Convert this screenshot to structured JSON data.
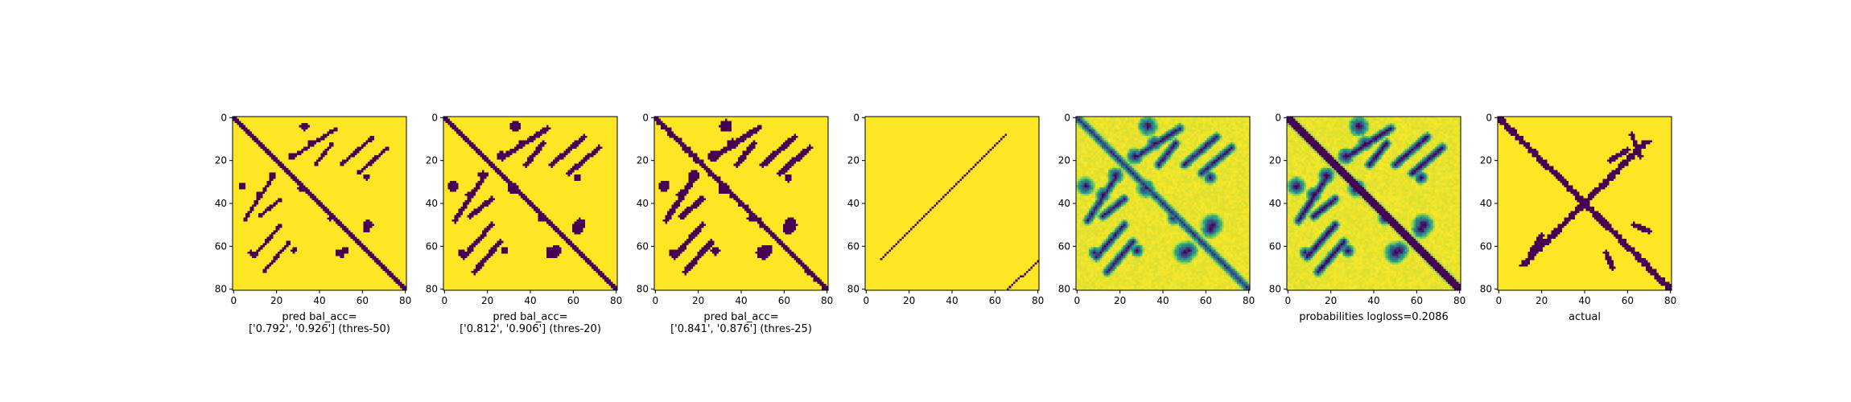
{
  "figure": {
    "panels": [
      {
        "label_lines": [
          "pred bal_acc=",
          "['0.792', '0.926'] (thres-50)"
        ]
      },
      {
        "label_lines": [
          "pred bal_acc=",
          "['0.812', '0.906'] (thres-20)"
        ]
      },
      {
        "label_lines": [
          "pred bal_acc=",
          "['0.841', '0.876'] (thres-25)"
        ]
      },
      {
        "label_lines": []
      },
      {
        "label_lines": []
      },
      {
        "label_lines": [
          "probabilities logloss=0.2086"
        ]
      },
      {
        "label_lines": [
          "actual"
        ]
      }
    ]
  },
  "chart_data": [
    {
      "type": "heatmap",
      "variant": "binary",
      "n": 81,
      "xlim": [
        0,
        80
      ],
      "ylim": [
        80,
        0
      ],
      "x_ticks": [
        0,
        20,
        40,
        60,
        80
      ],
      "y_ticks": [
        0,
        20,
        40,
        60,
        80
      ],
      "xlabel": "pred bal_acc=\n['0.792', '0.926'] (thres-50)",
      "colors": {
        "low": "#440154",
        "high": "#fde725"
      }
    },
    {
      "type": "heatmap",
      "variant": "binary",
      "n": 81,
      "xlim": [
        0,
        80
      ],
      "ylim": [
        80,
        0
      ],
      "x_ticks": [
        0,
        20,
        40,
        60,
        80
      ],
      "y_ticks": [
        0,
        20,
        40,
        60,
        80
      ],
      "xlabel": "pred bal_acc=\n['0.812', '0.906'] (thres-20)",
      "colors": {
        "low": "#440154",
        "high": "#fde725"
      }
    },
    {
      "type": "heatmap",
      "variant": "binary",
      "n": 81,
      "xlim": [
        0,
        80
      ],
      "ylim": [
        80,
        0
      ],
      "x_ticks": [
        0,
        20,
        40,
        60,
        80
      ],
      "y_ticks": [
        0,
        20,
        40,
        60,
        80
      ],
      "xlabel": "pred bal_acc=\n['0.841', '0.876'] (thres-25)",
      "colors": {
        "low": "#440154",
        "high": "#fde725"
      }
    },
    {
      "type": "heatmap",
      "variant": "binary",
      "n": 81,
      "xlim": [
        0,
        80
      ],
      "ylim": [
        80,
        0
      ],
      "x_ticks": [
        0,
        20,
        40,
        60,
        80
      ],
      "y_ticks": [
        0,
        20,
        40,
        60,
        80
      ],
      "xlabel": "",
      "colors": {
        "low": "#440154",
        "high": "#fde725"
      }
    },
    {
      "type": "heatmap",
      "variant": "continuous",
      "n": 81,
      "xlim": [
        0,
        80
      ],
      "ylim": [
        80,
        0
      ],
      "x_ticks": [
        0,
        20,
        40,
        60,
        80
      ],
      "y_ticks": [
        0,
        20,
        40,
        60,
        80
      ],
      "xlabel": "",
      "colors": {
        "low": "#440154",
        "high": "#fde725"
      }
    },
    {
      "type": "heatmap",
      "variant": "continuous",
      "n": 81,
      "xlim": [
        0,
        80
      ],
      "ylim": [
        80,
        0
      ],
      "x_ticks": [
        0,
        20,
        40,
        60,
        80
      ],
      "y_ticks": [
        0,
        20,
        40,
        60,
        80
      ],
      "xlabel": "probabilities logloss=0.2086",
      "colors": {
        "low": "#440154",
        "high": "#fde725"
      }
    },
    {
      "type": "heatmap",
      "variant": "binary",
      "n": 81,
      "xlim": [
        0,
        80
      ],
      "ylim": [
        80,
        0
      ],
      "x_ticks": [
        0,
        20,
        40,
        60,
        80
      ],
      "y_ticks": [
        0,
        20,
        40,
        60,
        80
      ],
      "xlabel": "actual",
      "colors": {
        "low": "#440154",
        "high": "#fde725"
      }
    }
  ]
}
